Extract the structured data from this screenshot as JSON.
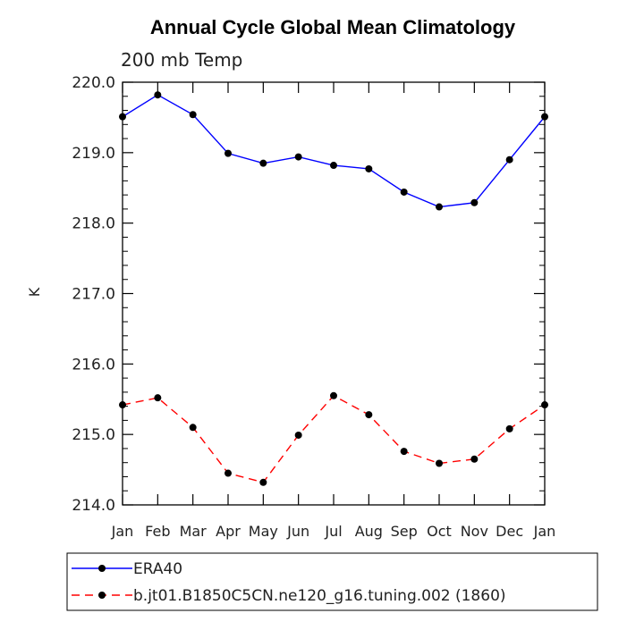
{
  "chart_data": {
    "type": "line",
    "title": "Annual Cycle Global Mean Climatology",
    "subtitle": "200 mb Temp",
    "xlabel": "",
    "ylabel": "K",
    "categories": [
      "Jan",
      "Feb",
      "Mar",
      "Apr",
      "May",
      "Jun",
      "Jul",
      "Aug",
      "Sep",
      "Oct",
      "Nov",
      "Dec",
      "Jan"
    ],
    "ylim": [
      214.0,
      220.0
    ],
    "y_ticks": [
      "214.0",
      "215.0",
      "216.0",
      "217.0",
      "218.0",
      "219.0",
      "220.0"
    ],
    "series": [
      {
        "name": "ERA40",
        "color": "#0000ff",
        "dash": "solid",
        "values": [
          219.51,
          219.82,
          219.54,
          218.99,
          218.85,
          218.94,
          218.82,
          218.77,
          218.44,
          218.23,
          218.29,
          218.9,
          219.51
        ]
      },
      {
        "name": "b.jt01.B1850C5CN.ne120_g16.tuning.002 (1860)",
        "color": "#ff0000",
        "dash": "dashed",
        "values": [
          215.42,
          215.52,
          215.1,
          214.45,
          214.32,
          214.99,
          215.55,
          215.28,
          214.76,
          214.59,
          214.65,
          215.08,
          215.42
        ]
      }
    ],
    "grid": false,
    "legend_position": "bottom"
  }
}
